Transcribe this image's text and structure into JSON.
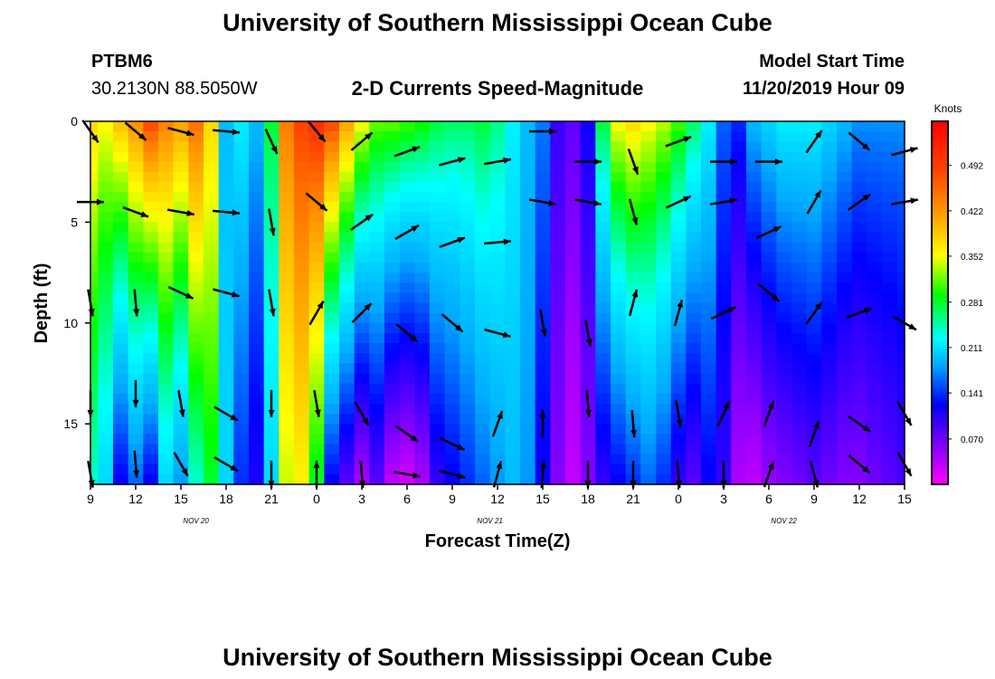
{
  "page": {
    "title_top": "University of Southern Mississippi Ocean Cube",
    "title_bottom": "University of Southern Mississippi Ocean Cube",
    "station": "PTBM6",
    "coords": "30.2130N 88.5050W",
    "plot_title": "2-D Currents Speed-Magnitude",
    "model_start_label": "Model Start Time",
    "model_start_value": "11/20/2019 Hour 09"
  },
  "chart_data": {
    "type": "heatmap",
    "title": "2-D Currents Speed-Magnitude",
    "xlabel": "Forecast Time(Z)",
    "ylabel": "Depth (ft)",
    "x_tick_labels": [
      "9",
      "12",
      "15",
      "18",
      "21",
      "0",
      "3",
      "6",
      "9",
      "12",
      "15",
      "18",
      "21",
      "0",
      "3",
      "6",
      "9",
      "12",
      "15"
    ],
    "x_hours": [
      0,
      3,
      6,
      9,
      12,
      15,
      18,
      21,
      24,
      27,
      30,
      33,
      36,
      39,
      42,
      45,
      48,
      51,
      54
    ],
    "x_range": [
      0,
      54
    ],
    "date_labels": [
      {
        "text": "NOV 20",
        "hour": 7
      },
      {
        "text": "NOV 21",
        "hour": 26.5
      },
      {
        "text": "NOV 22",
        "hour": 46
      }
    ],
    "y_ticks": [
      0,
      5,
      10,
      15
    ],
    "y_range": [
      0,
      18
    ],
    "colorbar": {
      "label": "Knots",
      "tick_values": [
        0.492,
        0.422,
        0.352,
        0.281,
        0.211,
        0.141,
        0.07
      ],
      "tick_labels": [
        "0.492",
        "0.422",
        "0.352",
        "0.281",
        "0.211",
        "0.141",
        "0.070"
      ],
      "range": [
        0.0,
        0.56
      ],
      "colors": [
        "#ff00ff",
        "#8000ff",
        "#0000ff",
        "#00aaff",
        "#00ffff",
        "#00ff00",
        "#ffff00",
        "#ffa000",
        "#ff4000",
        "#ff0000"
      ]
    },
    "time_profile": [
      {
        "hour": 0,
        "surface": 0.4,
        "bottom": 0.26
      },
      {
        "hour": 1,
        "surface": 0.38,
        "bottom": 0.22
      },
      {
        "hour": 2,
        "surface": 0.42,
        "bottom": 0.12
      },
      {
        "hour": 3,
        "surface": 0.45,
        "bottom": 0.16
      },
      {
        "hour": 4,
        "surface": 0.5,
        "bottom": 0.12
      },
      {
        "hour": 5,
        "surface": 0.46,
        "bottom": 0.22
      },
      {
        "hour": 6,
        "surface": 0.44,
        "bottom": 0.18
      },
      {
        "hour": 7,
        "surface": 0.47,
        "bottom": 0.26
      },
      {
        "hour": 8,
        "surface": 0.4,
        "bottom": 0.3
      },
      {
        "hour": 9,
        "surface": 0.2,
        "bottom": 0.22
      },
      {
        "hour": 10,
        "surface": 0.24,
        "bottom": 0.14
      },
      {
        "hour": 11,
        "surface": 0.2,
        "bottom": 0.11
      },
      {
        "hour": 12,
        "surface": 0.3,
        "bottom": 0.22
      },
      {
        "hour": 13,
        "surface": 0.46,
        "bottom": 0.36
      },
      {
        "hour": 14,
        "surface": 0.5,
        "bottom": 0.38
      },
      {
        "hour": 15,
        "surface": 0.52,
        "bottom": 0.3
      },
      {
        "hour": 16,
        "surface": 0.5,
        "bottom": 0.12
      },
      {
        "hour": 17,
        "surface": 0.44,
        "bottom": 0.08
      },
      {
        "hour": 18,
        "surface": 0.38,
        "bottom": 0.04
      },
      {
        "hour": 19,
        "surface": 0.34,
        "bottom": 0.08
      },
      {
        "hour": 20,
        "surface": 0.34,
        "bottom": 0.03
      },
      {
        "hour": 21,
        "surface": 0.33,
        "bottom": 0.02
      },
      {
        "hour": 22,
        "surface": 0.32,
        "bottom": 0.04
      },
      {
        "hour": 23,
        "surface": 0.3,
        "bottom": 0.1
      },
      {
        "hour": 24,
        "surface": 0.29,
        "bottom": 0.12
      },
      {
        "hour": 25,
        "surface": 0.29,
        "bottom": 0.14
      },
      {
        "hour": 26,
        "surface": 0.3,
        "bottom": 0.16
      },
      {
        "hour": 27,
        "surface": 0.28,
        "bottom": 0.18
      },
      {
        "hour": 28,
        "surface": 0.24,
        "bottom": 0.2
      },
      {
        "hour": 29,
        "surface": 0.2,
        "bottom": 0.18
      },
      {
        "hour": 30,
        "surface": 0.17,
        "bottom": 0.12
      },
      {
        "hour": 31,
        "surface": 0.1,
        "bottom": 0.06
      },
      {
        "hour": 32,
        "surface": 0.08,
        "bottom": 0.03
      },
      {
        "hour": 33,
        "surface": 0.12,
        "bottom": 0.06
      },
      {
        "hour": 34,
        "surface": 0.3,
        "bottom": 0.1
      },
      {
        "hour": 35,
        "surface": 0.38,
        "bottom": 0.12
      },
      {
        "hour": 36,
        "surface": 0.4,
        "bottom": 0.14
      },
      {
        "hour": 37,
        "surface": 0.38,
        "bottom": 0.16
      },
      {
        "hour": 38,
        "surface": 0.36,
        "bottom": 0.14
      },
      {
        "hour": 39,
        "surface": 0.33,
        "bottom": 0.1
      },
      {
        "hour": 40,
        "surface": 0.29,
        "bottom": 0.08
      },
      {
        "hour": 41,
        "surface": 0.24,
        "bottom": 0.12
      },
      {
        "hour": 42,
        "surface": 0.16,
        "bottom": 0.1
      },
      {
        "hour": 43,
        "surface": 0.14,
        "bottom": 0.04
      },
      {
        "hour": 44,
        "surface": 0.2,
        "bottom": 0.03
      },
      {
        "hour": 45,
        "surface": 0.22,
        "bottom": 0.05
      },
      {
        "hour": 46,
        "surface": 0.24,
        "bottom": 0.06
      },
      {
        "hour": 47,
        "surface": 0.24,
        "bottom": 0.07
      },
      {
        "hour": 48,
        "surface": 0.24,
        "bottom": 0.08
      },
      {
        "hour": 49,
        "surface": 0.22,
        "bottom": 0.07
      },
      {
        "hour": 50,
        "surface": 0.2,
        "bottom": 0.06
      },
      {
        "hour": 51,
        "surface": 0.18,
        "bottom": 0.06
      },
      {
        "hour": 52,
        "surface": 0.18,
        "bottom": 0.07
      },
      {
        "hour": 53,
        "surface": 0.18,
        "bottom": 0.08
      },
      {
        "hour": 54,
        "surface": 0.18,
        "bottom": 0.09
      }
    ],
    "vectors": [
      {
        "hour": 0,
        "depth": 0.5,
        "angle": -55
      },
      {
        "hour": 3,
        "depth": 0.5,
        "angle": -40
      },
      {
        "hour": 6,
        "depth": 0.5,
        "angle": -15
      },
      {
        "hour": 9,
        "depth": 0.5,
        "angle": -5
      },
      {
        "hour": 12,
        "depth": 1.0,
        "angle": -65
      },
      {
        "hour": 15,
        "depth": 0.5,
        "angle": -50
      },
      {
        "hour": 18,
        "depth": 1.0,
        "angle": 40
      },
      {
        "hour": 21,
        "depth": 1.5,
        "angle": 20
      },
      {
        "hour": 24,
        "depth": 2.0,
        "angle": 15
      },
      {
        "hour": 27,
        "depth": 2.0,
        "angle": 10
      },
      {
        "hour": 30,
        "depth": 0.5,
        "angle": 0
      },
      {
        "hour": 33,
        "depth": 2.0,
        "angle": 0
      },
      {
        "hour": 36,
        "depth": 2.0,
        "angle": -70
      },
      {
        "hour": 39,
        "depth": 1.0,
        "angle": 20
      },
      {
        "hour": 42,
        "depth": 2.0,
        "angle": 0
      },
      {
        "hour": 45,
        "depth": 2.0,
        "angle": 0
      },
      {
        "hour": 48,
        "depth": 1.0,
        "angle": 55
      },
      {
        "hour": 51,
        "depth": 1.0,
        "angle": -40
      },
      {
        "hour": 54,
        "depth": 1.5,
        "angle": 15
      },
      {
        "hour": 0,
        "depth": 4.0,
        "angle": 0
      },
      {
        "hour": 3,
        "depth": 4.5,
        "angle": -20
      },
      {
        "hour": 6,
        "depth": 4.5,
        "angle": -10
      },
      {
        "hour": 9,
        "depth": 4.5,
        "angle": -5
      },
      {
        "hour": 12,
        "depth": 5.0,
        "angle": -80
      },
      {
        "hour": 15,
        "depth": 4.0,
        "angle": -40
      },
      {
        "hour": 18,
        "depth": 5.0,
        "angle": 35
      },
      {
        "hour": 21,
        "depth": 5.5,
        "angle": 30
      },
      {
        "hour": 24,
        "depth": 6.0,
        "angle": 20
      },
      {
        "hour": 27,
        "depth": 6.0,
        "angle": 5
      },
      {
        "hour": 30,
        "depth": 4.0,
        "angle": -10
      },
      {
        "hour": 33,
        "depth": 4.0,
        "angle": -10
      },
      {
        "hour": 36,
        "depth": 4.5,
        "angle": -75
      },
      {
        "hour": 39,
        "depth": 4.0,
        "angle": 25
      },
      {
        "hour": 42,
        "depth": 4.0,
        "angle": 10
      },
      {
        "hour": 45,
        "depth": 5.5,
        "angle": 25
      },
      {
        "hour": 48,
        "depth": 4.0,
        "angle": 60
      },
      {
        "hour": 51,
        "depth": 4.0,
        "angle": 35
      },
      {
        "hour": 54,
        "depth": 4.0,
        "angle": 10
      },
      {
        "hour": 0,
        "depth": 9.0,
        "angle": -80
      },
      {
        "hour": 3,
        "depth": 9.0,
        "angle": -85
      },
      {
        "hour": 6,
        "depth": 8.5,
        "angle": -25
      },
      {
        "hour": 9,
        "depth": 8.5,
        "angle": -15
      },
      {
        "hour": 12,
        "depth": 9.0,
        "angle": -80
      },
      {
        "hour": 15,
        "depth": 9.5,
        "angle": 60
      },
      {
        "hour": 18,
        "depth": 9.5,
        "angle": 45
      },
      {
        "hour": 21,
        "depth": 10.5,
        "angle": -40
      },
      {
        "hour": 24,
        "depth": 10.0,
        "angle": -40
      },
      {
        "hour": 27,
        "depth": 10.5,
        "angle": -15
      },
      {
        "hour": 30,
        "depth": 10.0,
        "angle": -80
      },
      {
        "hour": 33,
        "depth": 10.5,
        "angle": -80
      },
      {
        "hour": 36,
        "depth": 9.0,
        "angle": 75
      },
      {
        "hour": 39,
        "depth": 9.5,
        "angle": 75
      },
      {
        "hour": 42,
        "depth": 9.5,
        "angle": 25
      },
      {
        "hour": 45,
        "depth": 8.5,
        "angle": -40
      },
      {
        "hour": 48,
        "depth": 9.5,
        "angle": 55
      },
      {
        "hour": 51,
        "depth": 9.5,
        "angle": 20
      },
      {
        "hour": 54,
        "depth": 10.0,
        "angle": -30
      },
      {
        "hour": 0,
        "depth": 14.0,
        "angle": -90
      },
      {
        "hour": 3,
        "depth": 13.5,
        "angle": -90
      },
      {
        "hour": 6,
        "depth": 14.0,
        "angle": -80
      },
      {
        "hour": 9,
        "depth": 14.5,
        "angle": -30
      },
      {
        "hour": 12,
        "depth": 14.0,
        "angle": -90
      },
      {
        "hour": 15,
        "depth": 14.0,
        "angle": -80
      },
      {
        "hour": 18,
        "depth": 14.5,
        "angle": -60
      },
      {
        "hour": 21,
        "depth": 15.5,
        "angle": -35
      },
      {
        "hour": 24,
        "depth": 16.0,
        "angle": -25
      },
      {
        "hour": 27,
        "depth": 15.0,
        "angle": 70
      },
      {
        "hour": 30,
        "depth": 15.0,
        "angle": 90
      },
      {
        "hour": 33,
        "depth": 14.0,
        "angle": -85
      },
      {
        "hour": 36,
        "depth": 15.0,
        "angle": -85
      },
      {
        "hour": 39,
        "depth": 14.5,
        "angle": -80
      },
      {
        "hour": 42,
        "depth": 14.5,
        "angle": 65
      },
      {
        "hour": 45,
        "depth": 14.5,
        "angle": 70
      },
      {
        "hour": 48,
        "depth": 15.5,
        "angle": 70
      },
      {
        "hour": 51,
        "depth": 15.0,
        "angle": -35
      },
      {
        "hour": 54,
        "depth": 14.5,
        "angle": -60
      },
      {
        "hour": 0,
        "depth": 17.5,
        "angle": -80
      },
      {
        "hour": 3,
        "depth": 17.0,
        "angle": -85
      },
      {
        "hour": 6,
        "depth": 17.0,
        "angle": -60
      },
      {
        "hour": 9,
        "depth": 17.0,
        "angle": -30
      },
      {
        "hour": 12,
        "depth": 17.5,
        "angle": -90
      },
      {
        "hour": 15,
        "depth": 17.5,
        "angle": 90
      },
      {
        "hour": 18,
        "depth": 17.5,
        "angle": -85
      },
      {
        "hour": 21,
        "depth": 17.5,
        "angle": -10
      },
      {
        "hour": 24,
        "depth": 17.5,
        "angle": -15
      },
      {
        "hour": 27,
        "depth": 17.5,
        "angle": 75
      },
      {
        "hour": 30,
        "depth": 17.5,
        "angle": 85
      },
      {
        "hour": 33,
        "depth": 17.5,
        "angle": -90
      },
      {
        "hour": 36,
        "depth": 17.5,
        "angle": -90
      },
      {
        "hour": 39,
        "depth": 17.5,
        "angle": -85
      },
      {
        "hour": 42,
        "depth": 17.5,
        "angle": -90
      },
      {
        "hour": 45,
        "depth": 17.5,
        "angle": 70
      },
      {
        "hour": 48,
        "depth": 17.5,
        "angle": -75
      },
      {
        "hour": 51,
        "depth": 17.0,
        "angle": -40
      },
      {
        "hour": 54,
        "depth": 17.0,
        "angle": -60
      }
    ],
    "grid": false,
    "legend": "colorbar-right"
  }
}
